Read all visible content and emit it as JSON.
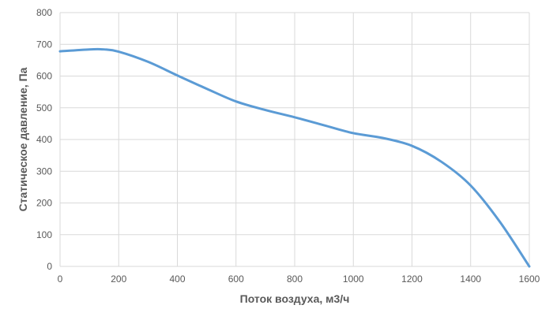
{
  "chart_data": {
    "type": "line",
    "title": "",
    "xlabel": "Поток воздуха, м3/ч",
    "ylabel": "Статическое давление, Па",
    "xlim": [
      0,
      1600
    ],
    "ylim": [
      0,
      800
    ],
    "x_ticks": [
      0,
      200,
      400,
      600,
      800,
      1000,
      1200,
      1400,
      1600
    ],
    "y_ticks": [
      0,
      100,
      200,
      300,
      400,
      500,
      600,
      700,
      800
    ],
    "grid": true,
    "legend": "none",
    "series": [
      {
        "color": "#5b9bd5",
        "points": [
          {
            "x": 0,
            "y": 678
          },
          {
            "x": 100,
            "y": 684
          },
          {
            "x": 150,
            "y": 684
          },
          {
            "x": 200,
            "y": 677
          },
          {
            "x": 300,
            "y": 645
          },
          {
            "x": 400,
            "y": 602
          },
          {
            "x": 500,
            "y": 560
          },
          {
            "x": 600,
            "y": 520
          },
          {
            "x": 700,
            "y": 493
          },
          {
            "x": 800,
            "y": 470
          },
          {
            "x": 900,
            "y": 445
          },
          {
            "x": 1000,
            "y": 420
          },
          {
            "x": 1100,
            "y": 405
          },
          {
            "x": 1200,
            "y": 380
          },
          {
            "x": 1300,
            "y": 330
          },
          {
            "x": 1400,
            "y": 255
          },
          {
            "x": 1500,
            "y": 140
          },
          {
            "x": 1600,
            "y": 0
          }
        ]
      }
    ]
  }
}
